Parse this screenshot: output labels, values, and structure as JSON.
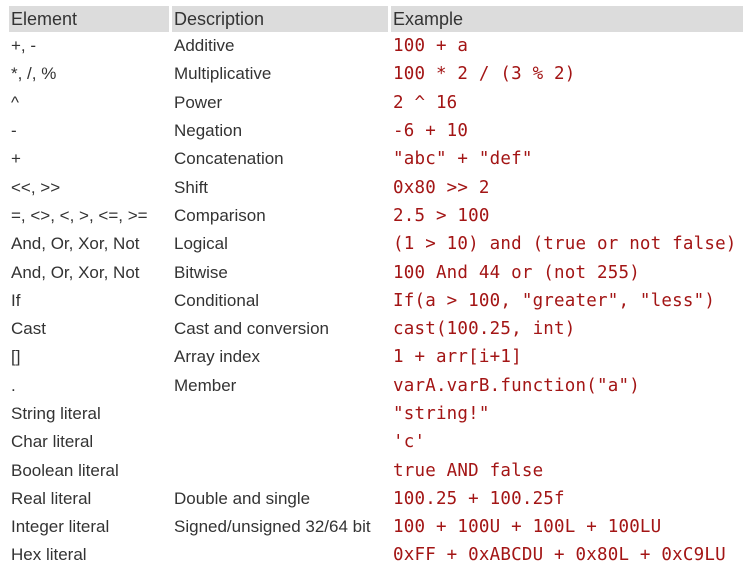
{
  "headers": [
    "Element",
    "Description",
    "Example"
  ],
  "rows": [
    [
      "+, -",
      "Additive",
      "100 + a"
    ],
    [
      "*, /, %",
      "Multiplicative",
      "100 * 2 / (3 % 2)"
    ],
    [
      "^",
      "Power",
      "2 ^ 16"
    ],
    [
      "-",
      "Negation",
      "-6 + 10"
    ],
    [
      "+",
      "Concatenation",
      "\"abc\" + \"def\""
    ],
    [
      "<<, >>",
      "Shift",
      "0x80 >> 2"
    ],
    [
      "=, <>, <, >, <=, >=",
      "Comparison",
      "2.5 > 100"
    ],
    [
      "And, Or, Xor, Not",
      "Logical",
      "(1 > 10) and (true or not false)"
    ],
    [
      "And, Or, Xor, Not",
      "Bitwise",
      "100 And 44 or (not 255)"
    ],
    [
      "If",
      "Conditional",
      "If(a > 100, \"greater\", \"less\")"
    ],
    [
      "Cast",
      "Cast and conversion",
      "cast(100.25, int)"
    ],
    [
      "[]",
      "Array index",
      "1 + arr[i+1]"
    ],
    [
      ".",
      "Member",
      "varA.varB.function(\"a\")"
    ],
    [
      "String literal",
      "",
      "\"string!\""
    ],
    [
      "Char literal",
      "",
      "'c'"
    ],
    [
      "Boolean literal",
      "",
      "true AND false"
    ],
    [
      "Real literal",
      "Double and single",
      "100.25 + 100.25f"
    ],
    [
      "Integer literal",
      "Signed/unsigned 32/64 bit",
      "100 + 100U + 100L + 100LU"
    ],
    [
      "Hex literal",
      "",
      "0xFF + 0xABCDU + 0x80L + 0xC9LU"
    ]
  ],
  "colors": {
    "header_bg": "#dcdcdc",
    "example_text": "#a31515",
    "text": "#333333"
  }
}
